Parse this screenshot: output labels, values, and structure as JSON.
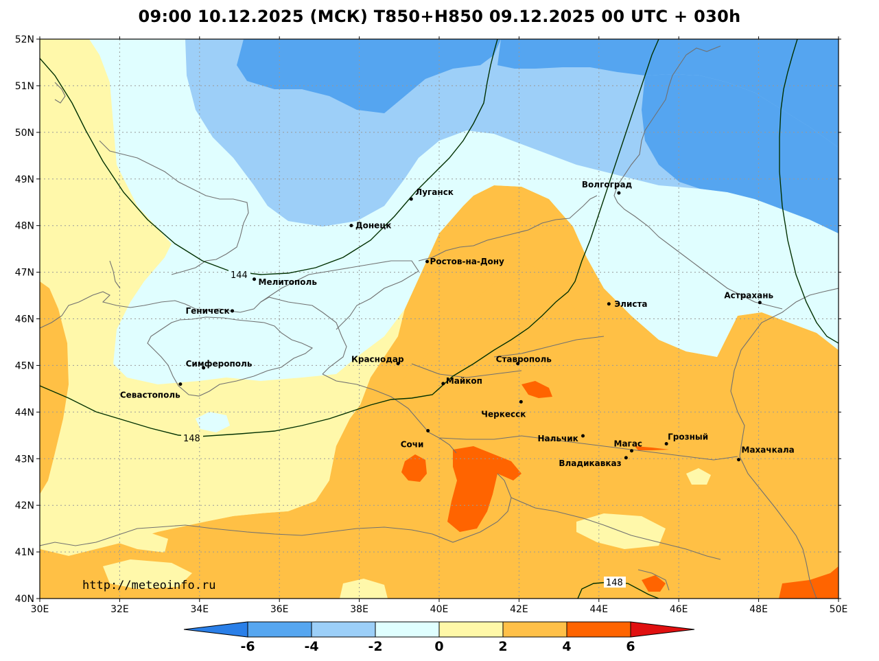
{
  "title": "09:00 10.12.2025 (МСК) T850+H850 09.12.2025 00 UTC + 030h",
  "watermark": "http://meteoinfo.ru",
  "axes": {
    "lon_labels": [
      "30E",
      "32E",
      "34E",
      "36E",
      "38E",
      "40E",
      "42E",
      "44E",
      "46E",
      "48E",
      "50E"
    ],
    "lat_labels": [
      "52N",
      "51N",
      "50N",
      "49N",
      "48N",
      "47N",
      "46N",
      "45N",
      "44N",
      "43N",
      "42N",
      "41N",
      "40N"
    ]
  },
  "isolines": {
    "iso_144": "144",
    "iso_148_a": "148",
    "iso_148_b": "148"
  },
  "cities": [
    {
      "name": "Волгоград",
      "lon": 44.5,
      "lat": 48.7
    },
    {
      "name": "Луганск",
      "lon": 39.3,
      "lat": 48.57
    },
    {
      "name": "Донецк",
      "lon": 37.8,
      "lat": 48.0
    },
    {
      "name": "Ростов-на-Дону",
      "lon": 39.7,
      "lat": 47.23
    },
    {
      "name": "Мелитополь",
      "lon": 35.37,
      "lat": 46.85
    },
    {
      "name": "Геническ",
      "lon": 34.82,
      "lat": 46.17
    },
    {
      "name": "Элиста",
      "lon": 44.25,
      "lat": 46.32
    },
    {
      "name": "Астрахань",
      "lon": 48.03,
      "lat": 46.35
    },
    {
      "name": "Краснодар",
      "lon": 38.97,
      "lat": 45.04
    },
    {
      "name": "Ставрополь",
      "lon": 41.97,
      "lat": 45.04
    },
    {
      "name": "Симферополь",
      "lon": 34.1,
      "lat": 44.95
    },
    {
      "name": "Майкоп",
      "lon": 40.1,
      "lat": 44.61
    },
    {
      "name": "Севастополь",
      "lon": 33.52,
      "lat": 44.6
    },
    {
      "name": "Черкесск",
      "lon": 42.05,
      "lat": 44.22
    },
    {
      "name": "Сочи",
      "lon": 39.72,
      "lat": 43.6
    },
    {
      "name": "Нальчик",
      "lon": 43.6,
      "lat": 43.49
    },
    {
      "name": "Магас",
      "lon": 44.82,
      "lat": 43.17
    },
    {
      "name": "Грозный",
      "lon": 45.69,
      "lat": 43.32
    },
    {
      "name": "Владикавказ",
      "lon": 44.68,
      "lat": 43.02
    },
    {
      "name": "Махачкала",
      "lon": 47.5,
      "lat": 42.98
    }
  ],
  "colorbar": {
    "labels": [
      "-6",
      "-4",
      "-2",
      "0",
      "2",
      "4",
      "6"
    ],
    "colors": [
      "#2a7fe8",
      "#56a6f0",
      "#9ccff8",
      "#e0ffff",
      "#fff8a8",
      "#ffc048",
      "#ff6400",
      "#e01010"
    ]
  },
  "colors": {
    "c_m6": "#55a5f0",
    "c_m4": "#9dcff8",
    "c_m2": "#e0feff",
    "c_0": "#fff8aa",
    "c_2": "#ffc045",
    "c_4": "#ff6400"
  }
}
